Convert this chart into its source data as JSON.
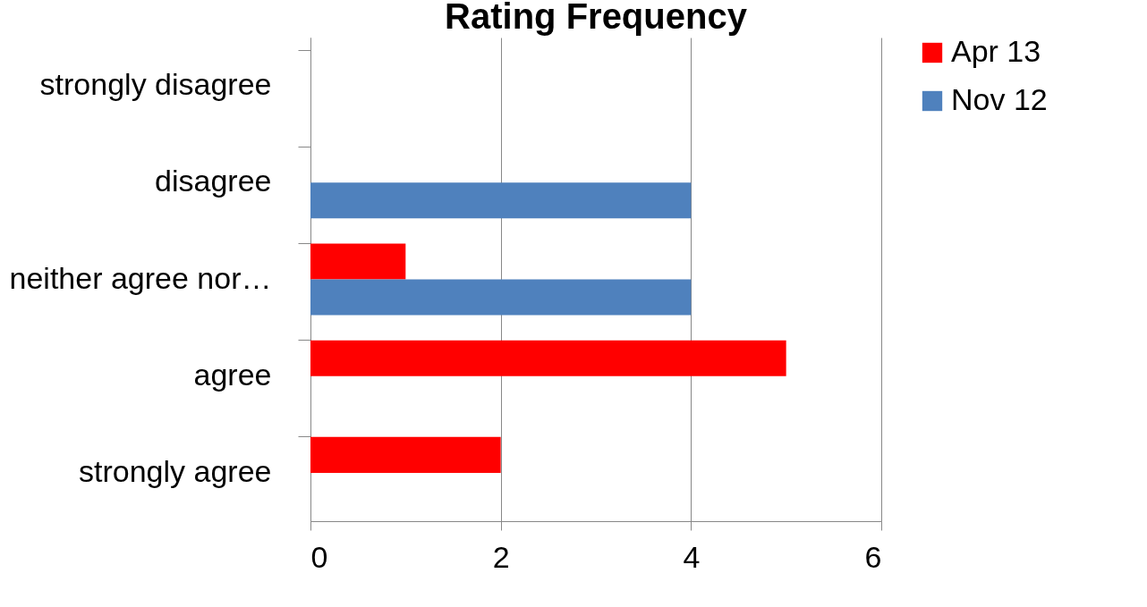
{
  "chart_data": {
    "type": "bar",
    "orientation": "horizontal",
    "title": "Rating Frequency",
    "categories": [
      "strongly disagree",
      "disagree",
      "neither agree nor…",
      "agree",
      "strongly agree"
    ],
    "series": [
      {
        "name": "Apr 13",
        "color": "#ff0000",
        "values": [
          0,
          0,
          1,
          5,
          2
        ]
      },
      {
        "name": "Nov 12",
        "color": "#4f81bd",
        "values": [
          0,
          4,
          4,
          0,
          0
        ]
      }
    ],
    "xlim": [
      0,
      6
    ],
    "xticks": [
      0,
      2,
      4,
      6
    ],
    "grid": "x",
    "legend": "right"
  }
}
